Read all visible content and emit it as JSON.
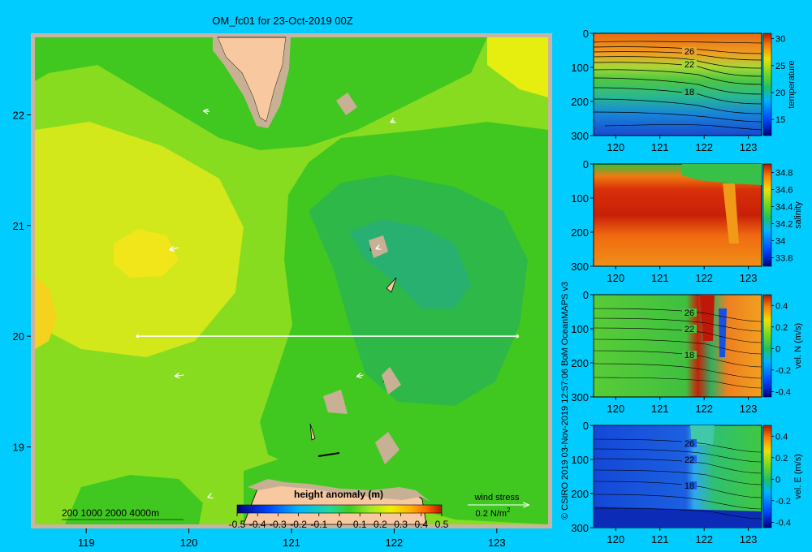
{
  "chart_data": [
    {
      "type": "heatmap",
      "title": "OM_fc01 for 23-Oct-2019 00Z",
      "variable": "height anomaly (m)",
      "x_ticks": [
        "119",
        "120",
        "121",
        "122",
        "123"
      ],
      "y_ticks": [
        "22",
        "21",
        "20",
        "19"
      ],
      "xlim": [
        118.5,
        123.5
      ],
      "ylim": [
        18.3,
        22.7
      ],
      "colorbar": {
        "label": "height anomaly (m)",
        "range": [
          -0.5,
          0.5
        ],
        "tick_labels": [
          "-0.5",
          "-0.4",
          "-0.3",
          "-0.2",
          "-0.1",
          "0",
          "0.1",
          "0.2",
          "0.3",
          "0.4",
          "0.5"
        ]
      },
      "section_line": {
        "lon": [
          119.5,
          123.2
        ],
        "lat": [
          20.0,
          20.0
        ]
      },
      "depth_legend": "200  1000  2000  4000m",
      "wind_stress_legend": {
        "label": "wind stress",
        "value": "0.2 N/m",
        "exponent": "2"
      },
      "wind_vectors": [
        {
          "lon": 120.2,
          "lat": 22.03,
          "u": -0.2,
          "v": 0.02
        },
        {
          "lon": 122.0,
          "lat": 21.95,
          "u": -0.12,
          "v": -0.07
        },
        {
          "lon": 119.9,
          "lat": 20.8,
          "u": -0.3,
          "v": -0.07
        },
        {
          "lon": 121.85,
          "lat": 20.8,
          "u": -0.1,
          "v": -0.04
        },
        {
          "lon": 119.95,
          "lat": 19.65,
          "u": -0.3,
          "v": -0.04
        },
        {
          "lon": 121.7,
          "lat": 19.65,
          "u": -0.22,
          "v": -0.05
        },
        {
          "lon": 120.2,
          "lat": 18.55,
          "u": -0.06,
          "v": -0.02
        }
      ]
    },
    {
      "type": "heatmap",
      "variable": "temperature",
      "x_ticks": [
        "120",
        "121",
        "122",
        "123"
      ],
      "y_ticks": [
        "0",
        "100",
        "200",
        "300"
      ],
      "colorbar": {
        "label": "temperature",
        "range": [
          12,
          31
        ],
        "tick_labels": [
          "30",
          "25",
          "20",
          "15"
        ]
      },
      "contour_labels": [
        "26",
        "22",
        "18"
      ]
    },
    {
      "type": "heatmap",
      "variable": "salinity",
      "x_ticks": [
        "120",
        "121",
        "122",
        "123"
      ],
      "y_ticks": [
        "0",
        "100",
        "200",
        "300"
      ],
      "colorbar": {
        "label": "salinity",
        "range": [
          33.7,
          34.9
        ],
        "tick_labels": [
          "34.8",
          "34.6",
          "34.4",
          "34.2",
          "34",
          "33.8"
        ]
      }
    },
    {
      "type": "heatmap",
      "variable": "vel. N (m/s)",
      "x_ticks": [
        "120",
        "121",
        "122",
        "123"
      ],
      "y_ticks": [
        "0",
        "100",
        "200",
        "300"
      ],
      "colorbar": {
        "label": "vel. N (m/s)",
        "range": [
          -0.45,
          0.5
        ],
        "tick_labels": [
          "0.4",
          "0.2",
          "0",
          "-0.2",
          "-0.4"
        ]
      },
      "contour_labels": [
        "26",
        "22",
        "18"
      ]
    },
    {
      "type": "heatmap",
      "variable": "vel. E (m/s)",
      "x_ticks": [
        "120",
        "121",
        "122",
        "123"
      ],
      "y_ticks": [
        "0",
        "100",
        "200",
        "300"
      ],
      "colorbar": {
        "label": "vel. E (m/s)",
        "range": [
          -0.45,
          0.5
        ],
        "tick_labels": [
          "0.4",
          "0.2",
          "0",
          "-0.2",
          "-0.4"
        ]
      },
      "contour_labels": [
        "26",
        "22",
        "18"
      ]
    }
  ],
  "credit": "© CSIRO 2019   03-Nov-2019 12:57:06 BoM OceanMAPS v3"
}
